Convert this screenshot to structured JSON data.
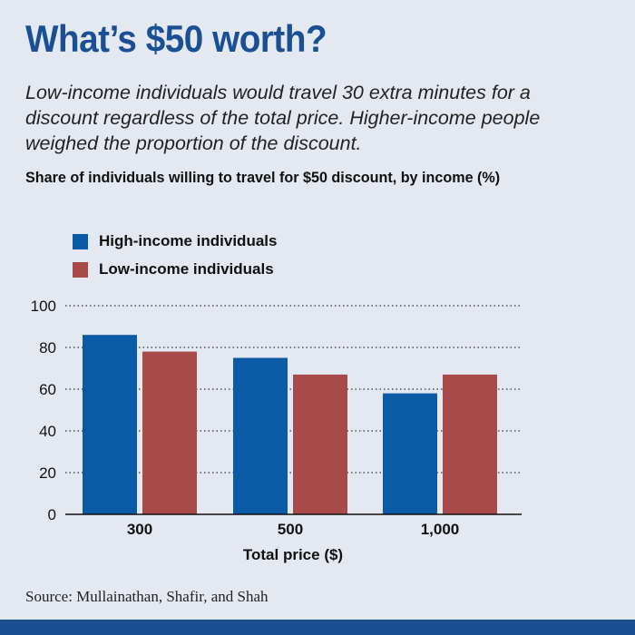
{
  "header": {
    "title": "What’s $50 worth?",
    "subtitle": "Low-income individuals would travel 30 extra minutes for a discount regardless of the total price. Higher-income people weighed the proportion of the discount."
  },
  "footer": {
    "source": "Source: Mullainathan, Shafir, and Shah"
  },
  "colors": {
    "background": "#e4e8f1",
    "title": "#1a4f94",
    "high_income": "#0b5aa6",
    "low_income": "#a84a4a",
    "bottom_bar": "#1a4f94"
  },
  "chart_data": {
    "type": "bar",
    "title": "Share of individuals willing to travel for $50 discount, by income (%)",
    "xlabel": "Total price ($)",
    "ylabel": "",
    "categories": [
      "300",
      "500",
      "1,000"
    ],
    "series": [
      {
        "name": "High-income individuals",
        "values": [
          86,
          75,
          58
        ],
        "color": "#0b5aa6"
      },
      {
        "name": "Low-income individuals",
        "values": [
          78,
          67,
          67
        ],
        "color": "#a84a4a"
      }
    ],
    "ylim": [
      0,
      100
    ],
    "yticks": [
      0,
      20,
      40,
      60,
      80,
      100
    ],
    "grid": "dotted horizontal",
    "legend": "top-left"
  }
}
